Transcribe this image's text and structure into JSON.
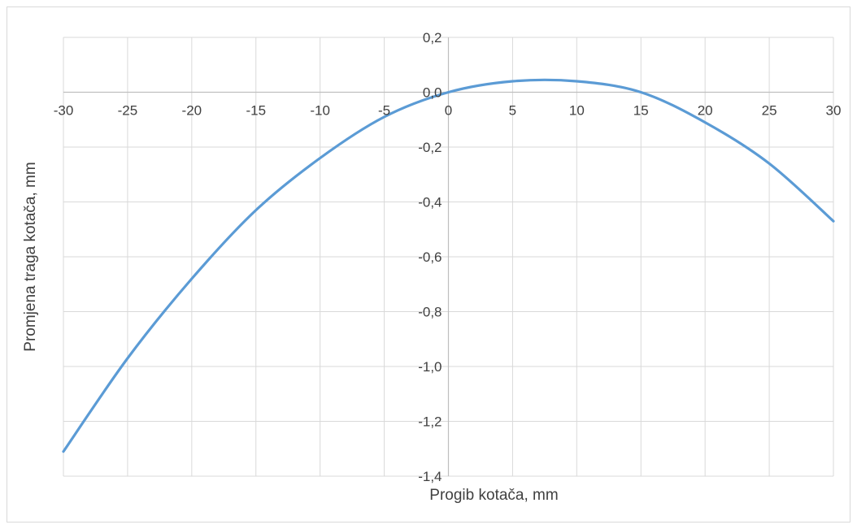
{
  "chart_data": {
    "type": "line",
    "title": "",
    "xlabel": "Progib kotača, mm",
    "ylabel": "Promjena traga kotača, mm",
    "xlim": [
      -30,
      30
    ],
    "ylim": [
      -1.4,
      0.2
    ],
    "x_ticks": [
      -30,
      -25,
      -20,
      -15,
      -10,
      -5,
      0,
      5,
      10,
      15,
      20,
      25,
      30
    ],
    "x_tick_labels": [
      "-30",
      "-25",
      "-20",
      "-15",
      "-10",
      "-5",
      "0",
      "5",
      "10",
      "15",
      "20",
      "25",
      "30"
    ],
    "y_ticks": [
      0.2,
      0.0,
      -0.2,
      -0.4,
      -0.6,
      -0.8,
      -1.0,
      -1.2,
      -1.4
    ],
    "y_tick_labels": [
      "0,2",
      "0,0",
      "-0,2",
      "-0,4",
      "-0,6",
      "-0,8",
      "-1,0",
      "-1,2",
      "-1,4"
    ],
    "grid": true,
    "series": [
      {
        "color": "#5b9bd5",
        "x": [
          -30,
          -25,
          -20,
          -15,
          -10,
          -5,
          0,
          5,
          10,
          15,
          20,
          25,
          30
        ],
        "y": [
          -1.31,
          -0.97,
          -0.68,
          -0.43,
          -0.24,
          -0.09,
          0.0,
          0.04,
          0.04,
          0.0,
          -0.11,
          -0.26,
          -0.47
        ]
      }
    ]
  }
}
